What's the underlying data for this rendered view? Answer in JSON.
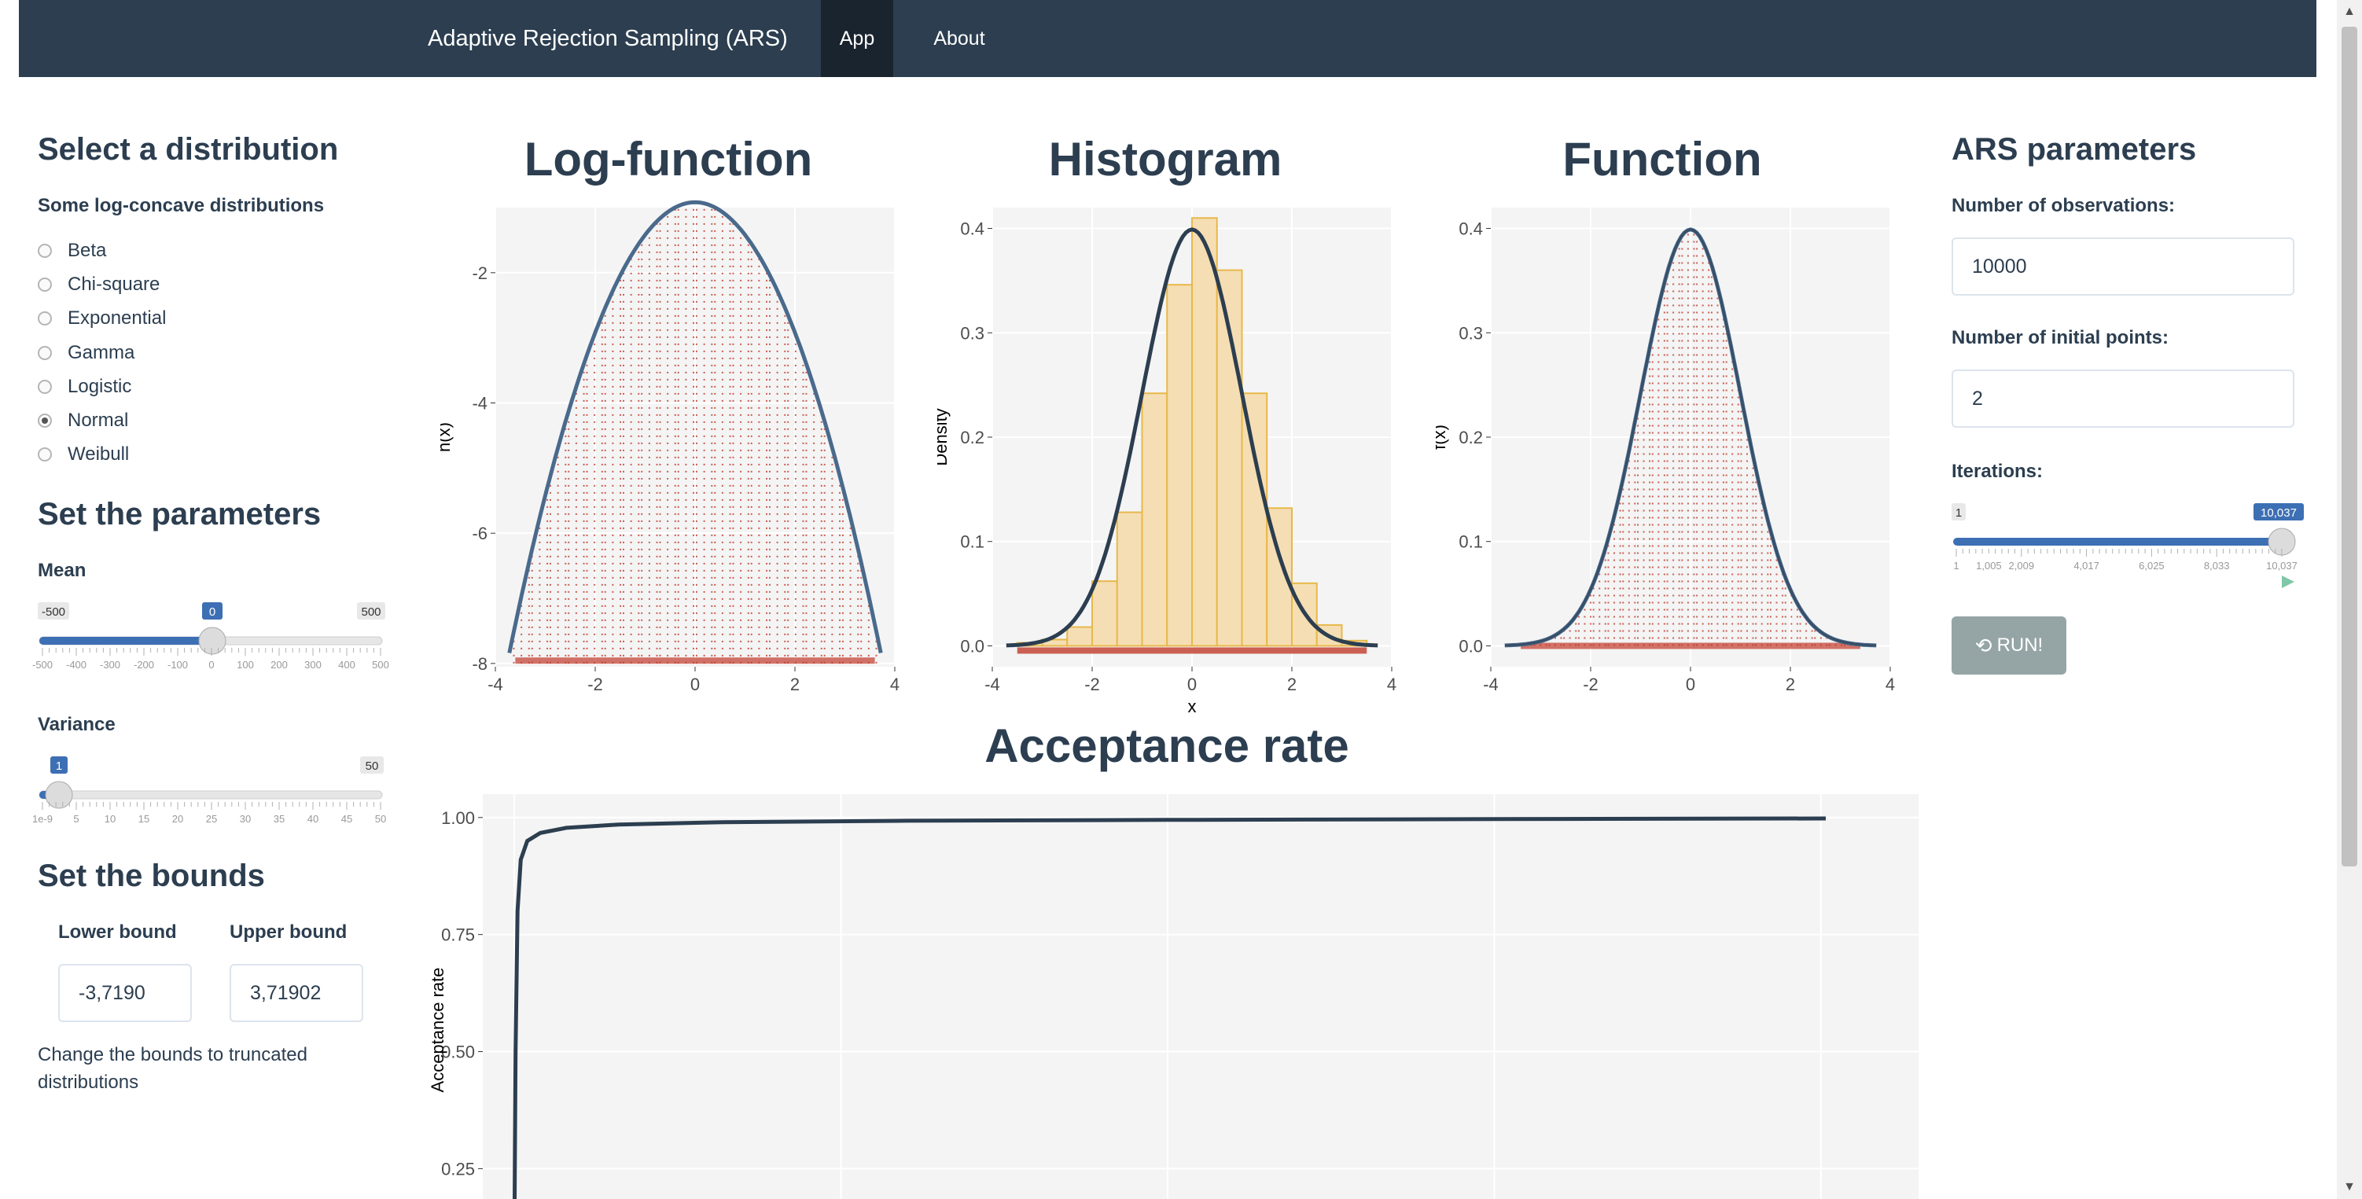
{
  "navbar": {
    "brand": "Adaptive Rejection Sampling (ARS)",
    "tabs": [
      {
        "label": "App",
        "active": true
      },
      {
        "label": "About",
        "active": false
      }
    ],
    "background": "#2c3e50"
  },
  "left": {
    "dist_title": "Select a distribution",
    "dist_label": "Some log-concave distributions",
    "distributions": [
      {
        "label": "Beta",
        "selected": false
      },
      {
        "label": "Chi-square",
        "selected": false
      },
      {
        "label": "Exponential",
        "selected": false
      },
      {
        "label": "Gamma",
        "selected": false
      },
      {
        "label": "Logistic",
        "selected": false
      },
      {
        "label": "Normal",
        "selected": true
      },
      {
        "label": "Weibull",
        "selected": false
      }
    ],
    "params_title": "Set the parameters",
    "mean": {
      "label": "Mean",
      "min": "-500",
      "max": "500",
      "value": "0",
      "ticks": [
        "-500",
        "-400",
        "-300",
        "-200",
        "-100",
        "0",
        "100",
        "200",
        "300",
        "400",
        "500"
      ]
    },
    "variance": {
      "label": "Variance",
      "min": "1",
      "max": "50",
      "value": "1",
      "ticks": [
        "1e-9",
        "5",
        "10",
        "15",
        "20",
        "25",
        "30",
        "35",
        "40",
        "45",
        "50"
      ]
    },
    "bounds_title": "Set the bounds",
    "lower_label": "Lower bound",
    "upper_label": "Upper bound",
    "lower_value": "-3,7190",
    "upper_value": "3,71902",
    "help": "Change the bounds to truncated distributions"
  },
  "right": {
    "title": "ARS parameters",
    "obs_label": "Number of observations:",
    "obs_value": "10000",
    "init_label": "Number of initial points:",
    "init_value": "2",
    "iter_label": "Iterations:",
    "iter_min": "1",
    "iter_max": "10,037",
    "iter_value": "10,037",
    "iter_ticks": [
      "1",
      "1,005",
      "2,009",
      "4,017",
      "6,025",
      "8,033",
      "10,037"
    ],
    "run_label": "RUN!",
    "run_icon": "refresh-icon",
    "slider_color": "#3d6fb4"
  },
  "plots": {
    "log_title": "Log-function",
    "hist_title": "Histogram",
    "func_title": "Function",
    "acc_title": "Acceptance rate"
  },
  "chart_data": [
    {
      "type": "line",
      "title": "Log-function",
      "xlabel": "",
      "ylabel": "h(x)",
      "xlim": [
        -4,
        4
      ],
      "ylim": [
        -8,
        -1
      ],
      "x_ticks": [
        "-4",
        "-2",
        "0",
        "2",
        "4"
      ],
      "y_ticks": [
        "-8",
        "-6",
        "-4",
        "-2"
      ],
      "curve": "h(x) = -0.919 - x^2/2 over x in [-3.72, 3.72]",
      "x": [
        -3.72,
        -3,
        -2,
        -1,
        0,
        1,
        2,
        3,
        3.72
      ],
      "y": [
        -7.84,
        -5.42,
        -2.92,
        -1.42,
        -0.92,
        -1.42,
        -2.92,
        -5.42,
        -7.84
      ],
      "vertical_lines_color": "#c0392b",
      "line_color": "#4a6a8c"
    },
    {
      "type": "bar",
      "title": "Histogram",
      "xlabel": "x",
      "ylabel": "Density",
      "xlim": [
        -4,
        4
      ],
      "ylim": [
        0,
        0.42
      ],
      "x_ticks": [
        "-4",
        "-2",
        "0",
        "2",
        "4"
      ],
      "y_ticks": [
        "0.0",
        "0.1",
        "0.2",
        "0.3",
        "0.4"
      ],
      "bin_edges": [
        -3.5,
        -3,
        -2.5,
        -2,
        -1.5,
        -1,
        -0.5,
        0,
        0.5,
        1,
        1.5,
        2,
        2.5,
        3,
        3.5
      ],
      "values": [
        0.003,
        0.006,
        0.018,
        0.062,
        0.128,
        0.242,
        0.346,
        0.41,
        0.36,
        0.242,
        0.132,
        0.06,
        0.02,
        0.005
      ],
      "overlay": "standard normal density, peak 0.399 at x=0",
      "bar_color": "#f5deb3",
      "bar_stroke": "#e8b84a",
      "line_color": "#2c3e50"
    },
    {
      "type": "line",
      "title": "Function",
      "xlabel": "",
      "ylabel": "f(x)",
      "xlim": [
        -4,
        4
      ],
      "ylim": [
        0,
        0.42
      ],
      "x_ticks": [
        "-4",
        "-2",
        "0",
        "2",
        "4"
      ],
      "y_ticks": [
        "0.0",
        "0.1",
        "0.2",
        "0.3",
        "0.4"
      ],
      "x": [
        -3.72,
        -3,
        -2,
        -1,
        0,
        1,
        2,
        3,
        3.72
      ],
      "y": [
        0.0004,
        0.0044,
        0.054,
        0.242,
        0.399,
        0.242,
        0.054,
        0.0044,
        0.0004
      ],
      "line_color": "#2c3e50"
    },
    {
      "type": "line",
      "title": "Acceptance rate",
      "xlabel": "",
      "ylabel": "Acceptance rate",
      "xlim": [
        0,
        10037
      ],
      "y_ticks": [
        "0.25",
        "0.50",
        "0.75",
        "1.00"
      ],
      "ylim": [
        0.16,
        1.05
      ],
      "x": [
        1,
        10,
        25,
        50,
        100,
        200,
        400,
        800,
        1600,
        3000,
        5000,
        8000,
        10037
      ],
      "y": [
        0.1,
        0.5,
        0.8,
        0.91,
        0.95,
        0.967,
        0.978,
        0.985,
        0.99,
        0.993,
        0.995,
        0.997,
        0.998
      ],
      "line_color": "#2c3e50"
    }
  ]
}
